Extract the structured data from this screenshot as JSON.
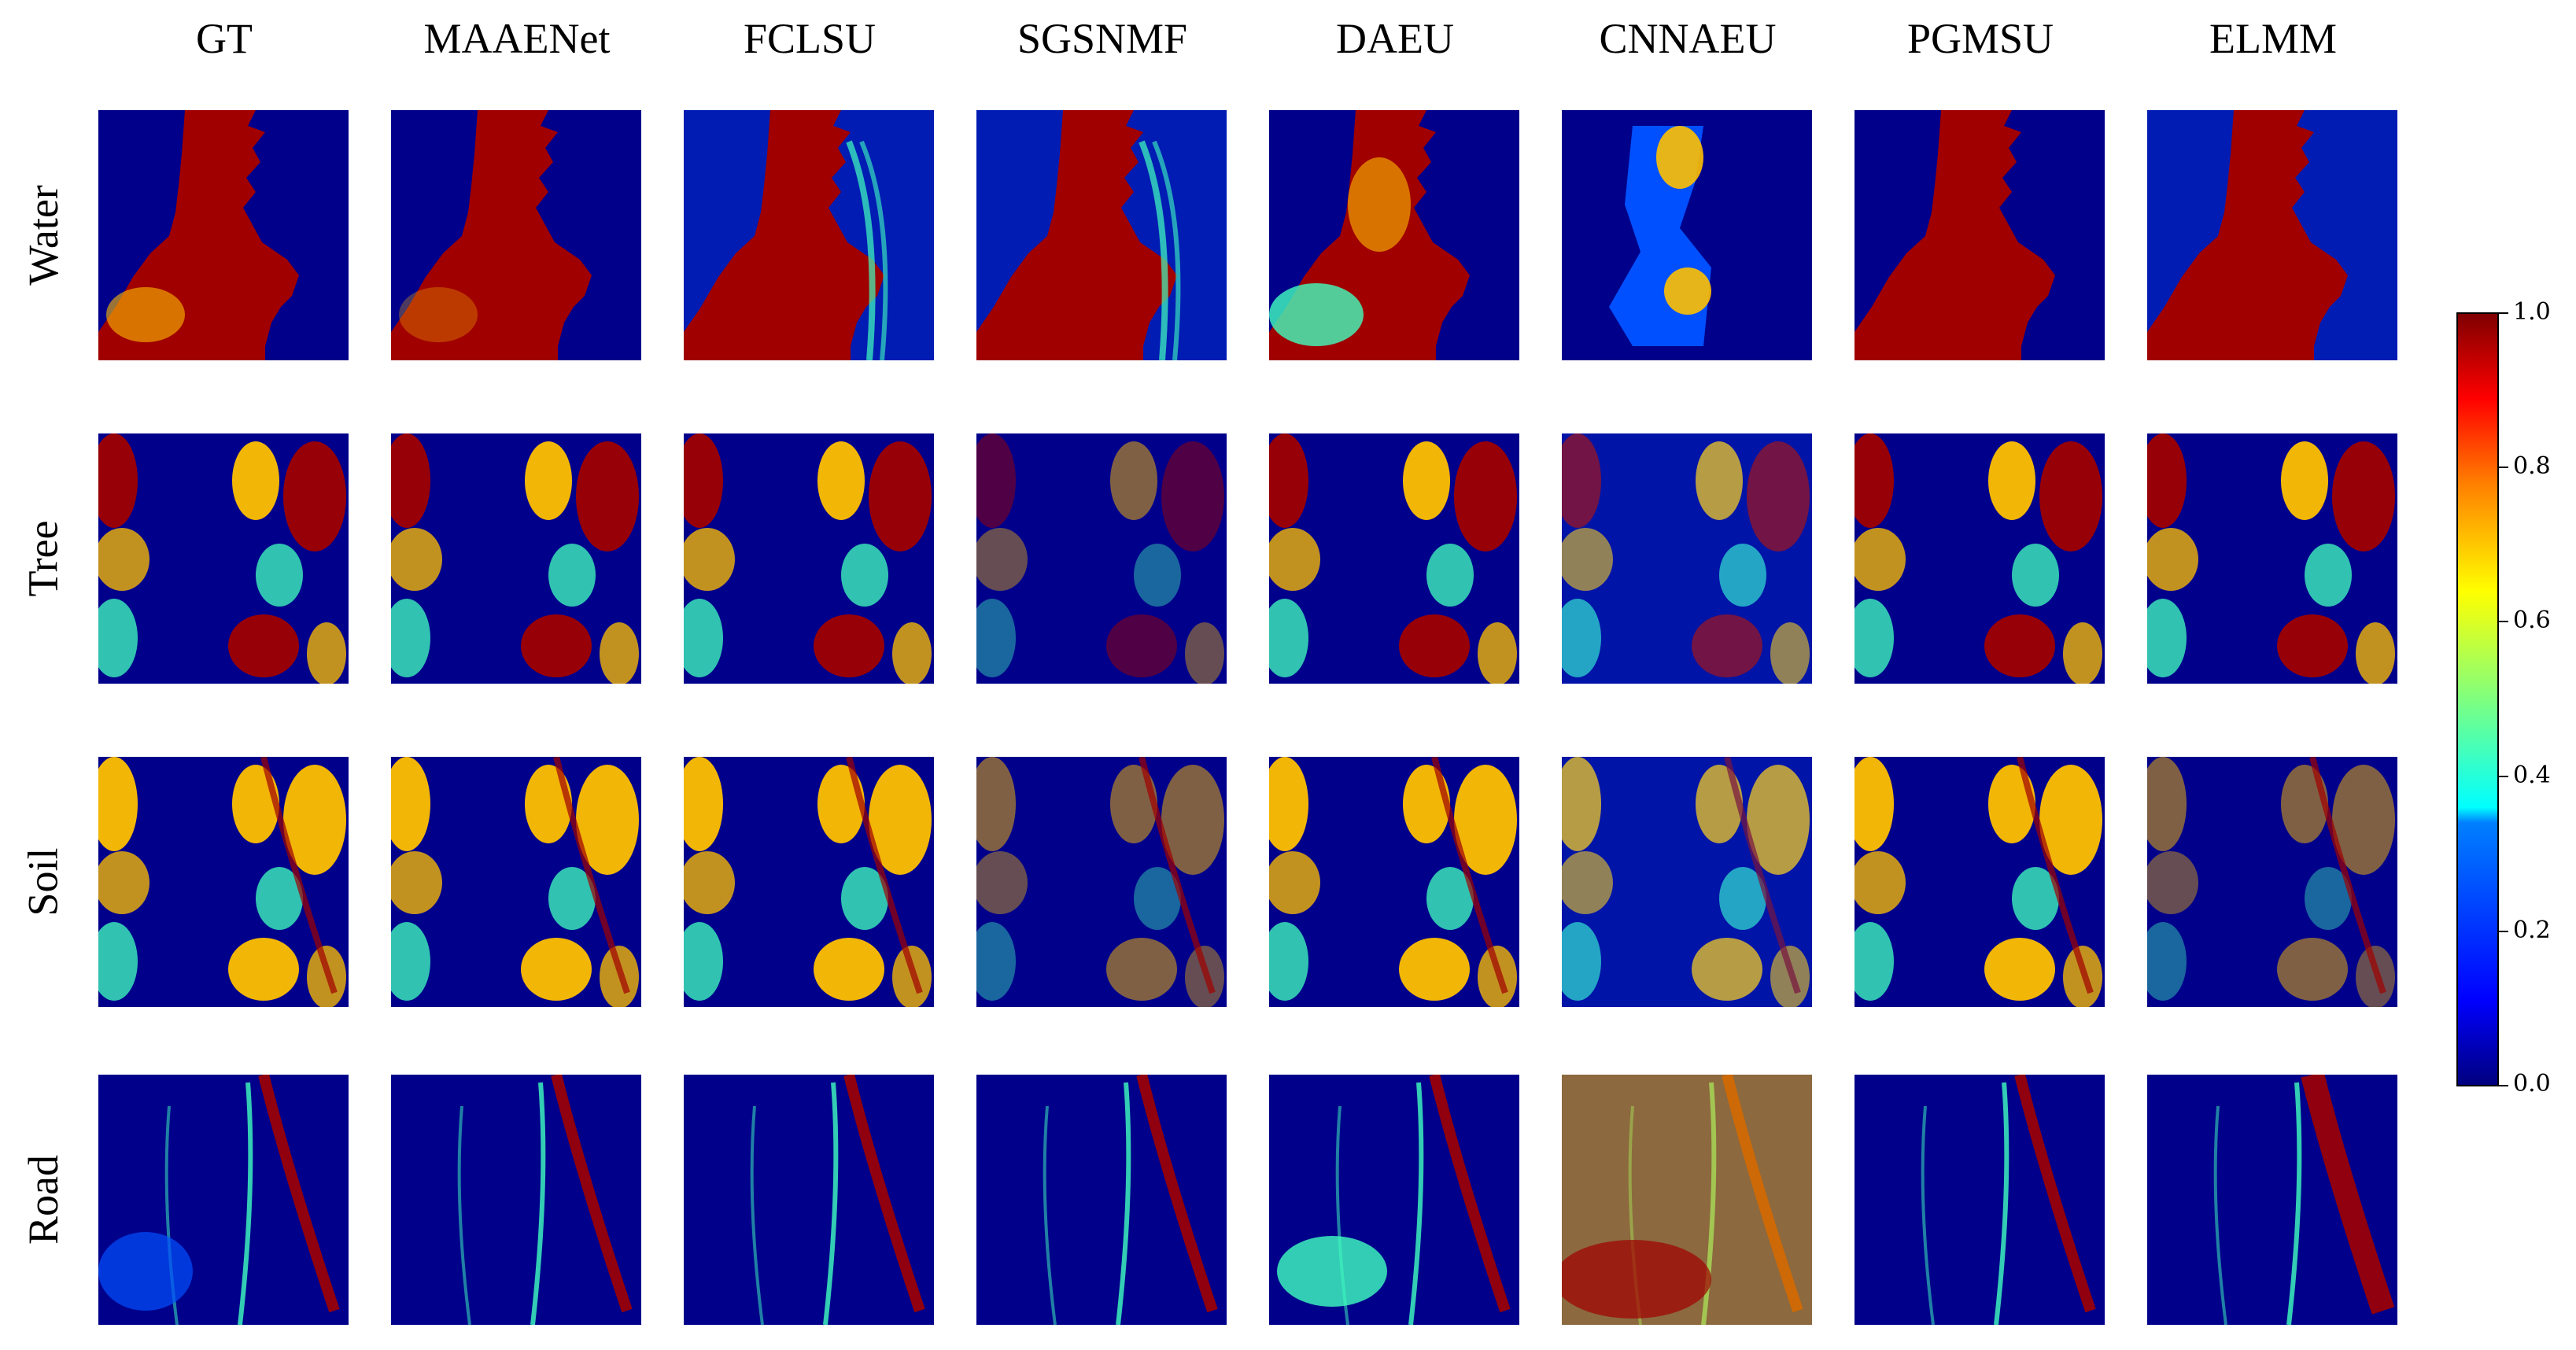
{
  "figure": {
    "columns": [
      "GT",
      "MAAENet",
      "FCLSU",
      "SGSNMF",
      "DAEU",
      "CNNAEU",
      "PGMSU",
      "ELMM"
    ],
    "rows": [
      "Water",
      "Tree",
      "Soil",
      "Road"
    ],
    "panel_description": "abundance maps",
    "colormap": "jet",
    "colors": {
      "low": "#00008a",
      "mid_low": "#0050ff",
      "mid": "#40ffbf",
      "mid_high": "#ffc000",
      "high": "#a00000"
    }
  },
  "colorbar": {
    "min": 0.0,
    "max": 1.0,
    "ticks": [
      "0.0",
      "0.2",
      "0.4",
      "0.6",
      "0.8",
      "1.0"
    ]
  },
  "chart_data": {
    "type": "heatmap",
    "title": "",
    "xlabel": "",
    "ylabel": "",
    "categories_x": [
      "GT",
      "MAAENet",
      "FCLSU",
      "SGSNMF",
      "DAEU",
      "CNNAEU",
      "PGMSU",
      "ELMM"
    ],
    "categories_y": [
      "Water",
      "Tree",
      "Soil",
      "Road"
    ],
    "value_range": [
      0.0,
      1.0
    ],
    "colorbar_ticks": [
      0.0,
      0.2,
      0.4,
      0.6,
      0.8,
      1.0
    ],
    "grid": false,
    "legend": "right"
  }
}
